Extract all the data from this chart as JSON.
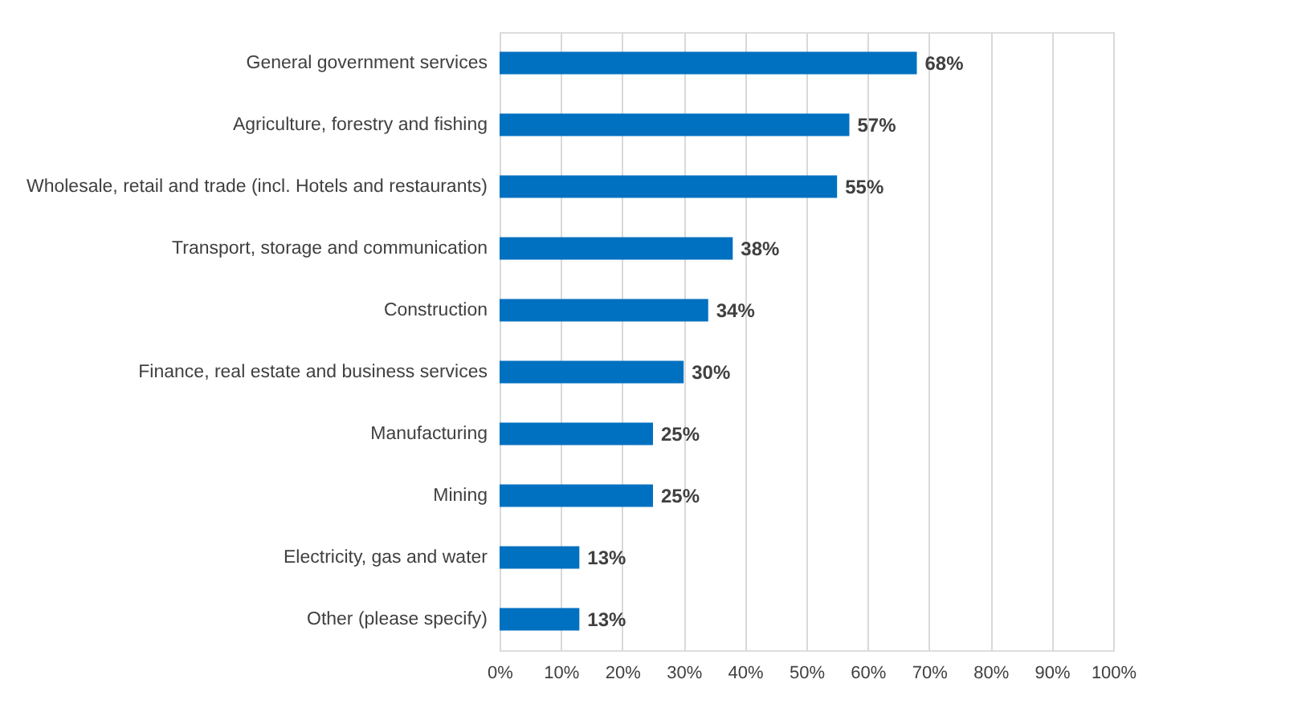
{
  "chart_data": {
    "type": "bar",
    "orientation": "horizontal",
    "categories": [
      "General government services",
      "Agriculture, forestry and fishing",
      "Wholesale, retail and trade (incl. Hotels and restaurants)",
      "Transport, storage and communication",
      "Construction",
      "Finance, real estate and business services",
      "Manufacturing",
      "Mining",
      "Electricity, gas and water",
      "Other (please specify)"
    ],
    "values": [
      68,
      57,
      55,
      38,
      34,
      30,
      25,
      25,
      13,
      13
    ],
    "value_labels": [
      "68%",
      "57%",
      "55%",
      "38%",
      "34%",
      "30%",
      "25%",
      "25%",
      "13%",
      "13%"
    ],
    "color": "#0070c0",
    "xlim": [
      0,
      100
    ],
    "xticks": [
      {
        "value": 0,
        "label": "0%"
      },
      {
        "value": 10,
        "label": "10%"
      },
      {
        "value": 20,
        "label": "20%"
      },
      {
        "value": 30,
        "label": "30%"
      },
      {
        "value": 40,
        "label": "40%"
      },
      {
        "value": 50,
        "label": "50%"
      },
      {
        "value": 60,
        "label": "60%"
      },
      {
        "value": 70,
        "label": "70%"
      },
      {
        "value": 80,
        "label": "80%"
      },
      {
        "value": 90,
        "label": "90%"
      },
      {
        "value": 100,
        "label": "100%"
      }
    ],
    "grid": "x"
  }
}
